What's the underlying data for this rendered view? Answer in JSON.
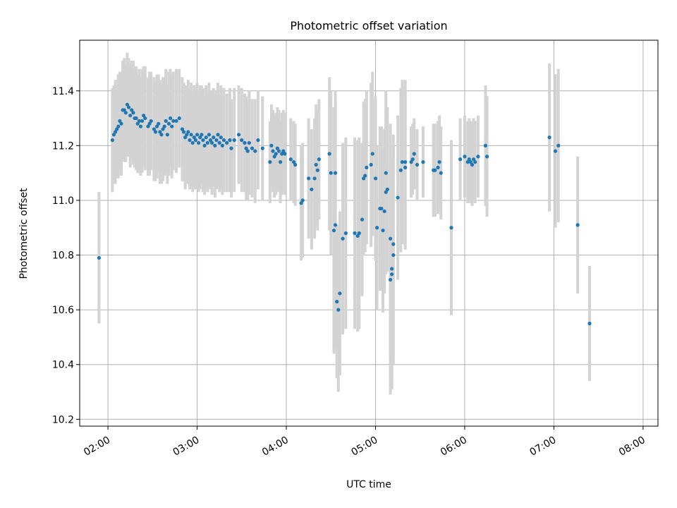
{
  "chart_data": {
    "type": "scatter",
    "title": "Photometric offset variation",
    "xlabel": "UTC time",
    "ylabel": "Photometric offset",
    "xlim": [
      "01:41",
      "08:10"
    ],
    "ylim": [
      10.175,
      11.585
    ],
    "grid": true,
    "colors": {
      "point": "#1f77b4",
      "errorbar": "#d3d3d3",
      "grid": "#b0b0b0"
    },
    "x_ticks": [
      "02:00",
      "03:00",
      "04:00",
      "05:00",
      "06:00",
      "07:00",
      "08:00"
    ],
    "y_ticks": [
      "10.2",
      "10.4",
      "10.6",
      "10.8",
      "11.0",
      "11.2",
      "11.4"
    ],
    "series": [
      {
        "points": [
          [
            "01:54",
            10.79,
            0.24
          ],
          [
            "02:03",
            11.22,
            0.19
          ],
          [
            "02:04",
            11.24,
            0.18
          ],
          [
            "02:05",
            11.25,
            0.19
          ],
          [
            "02:06",
            11.26,
            0.18
          ],
          [
            "02:07",
            11.27,
            0.19
          ],
          [
            "02:08",
            11.29,
            0.18
          ],
          [
            "02:09",
            11.28,
            0.19
          ],
          [
            "02:10",
            11.33,
            0.18
          ],
          [
            "02:11",
            11.33,
            0.19
          ],
          [
            "02:12",
            11.32,
            0.18
          ],
          [
            "02:13",
            11.35,
            0.19
          ],
          [
            "02:14",
            11.34,
            0.18
          ],
          [
            "02:15",
            11.31,
            0.19
          ],
          [
            "02:16",
            11.33,
            0.18
          ],
          [
            "02:17",
            11.32,
            0.19
          ],
          [
            "02:18",
            11.3,
            0.18
          ],
          [
            "02:19",
            11.3,
            0.19
          ],
          [
            "02:20",
            11.28,
            0.18
          ],
          [
            "02:21",
            11.29,
            0.19
          ],
          [
            "02:22",
            11.27,
            0.18
          ],
          [
            "02:23",
            11.29,
            0.19
          ],
          [
            "02:24",
            11.31,
            0.18
          ],
          [
            "02:25",
            11.3,
            0.19
          ],
          [
            "02:27",
            11.27,
            0.18
          ],
          [
            "02:28",
            11.28,
            0.19
          ],
          [
            "02:29",
            11.29,
            0.18
          ],
          [
            "02:31",
            11.26,
            0.19
          ],
          [
            "02:32",
            11.25,
            0.18
          ],
          [
            "02:33",
            11.27,
            0.19
          ],
          [
            "02:34",
            11.28,
            0.18
          ],
          [
            "02:35",
            11.25,
            0.19
          ],
          [
            "02:36",
            11.24,
            0.18
          ],
          [
            "02:37",
            11.26,
            0.19
          ],
          [
            "02:38",
            11.27,
            0.18
          ],
          [
            "02:39",
            11.29,
            0.19
          ],
          [
            "02:40",
            11.24,
            0.18
          ],
          [
            "02:41",
            11.28,
            0.19
          ],
          [
            "02:42",
            11.3,
            0.18
          ],
          [
            "02:43",
            11.27,
            0.19
          ],
          [
            "02:44",
            11.29,
            0.18
          ],
          [
            "02:46",
            11.29,
            0.19
          ],
          [
            "02:48",
            11.3,
            0.18
          ],
          [
            "02:50",
            11.26,
            0.19
          ],
          [
            "02:51",
            11.25,
            0.18
          ],
          [
            "02:52",
            11.23,
            0.19
          ],
          [
            "02:53",
            11.24,
            0.18
          ],
          [
            "02:54",
            11.25,
            0.19
          ],
          [
            "02:55",
            11.22,
            0.18
          ],
          [
            "02:56",
            11.24,
            0.19
          ],
          [
            "02:57",
            11.21,
            0.18
          ],
          [
            "02:58",
            11.23,
            0.19
          ],
          [
            "02:59",
            11.22,
            0.18
          ],
          [
            "03:00",
            11.24,
            0.19
          ],
          [
            "03:01",
            11.21,
            0.18
          ],
          [
            "03:02",
            11.23,
            0.19
          ],
          [
            "03:03",
            11.24,
            0.18
          ],
          [
            "03:04",
            11.22,
            0.19
          ],
          [
            "03:05",
            11.2,
            0.18
          ],
          [
            "03:06",
            11.23,
            0.19
          ],
          [
            "03:07",
            11.21,
            0.18
          ],
          [
            "03:08",
            11.24,
            0.19
          ],
          [
            "03:09",
            11.22,
            0.18
          ],
          [
            "03:10",
            11.21,
            0.19
          ],
          [
            "03:11",
            11.23,
            0.18
          ],
          [
            "03:12",
            11.2,
            0.19
          ],
          [
            "03:13",
            11.22,
            0.18
          ],
          [
            "03:14",
            11.24,
            0.19
          ],
          [
            "03:15",
            11.21,
            0.18
          ],
          [
            "03:16",
            11.23,
            0.19
          ],
          [
            "03:17",
            11.2,
            0.18
          ],
          [
            "03:18",
            11.22,
            0.19
          ],
          [
            "03:20",
            11.21,
            0.18
          ],
          [
            "03:22",
            11.22,
            0.19
          ],
          [
            "03:23",
            11.19,
            0.18
          ],
          [
            "03:25",
            11.22,
            0.19
          ],
          [
            "03:28",
            11.24,
            0.18
          ],
          [
            "03:30",
            11.22,
            0.19
          ],
          [
            "03:32",
            11.21,
            0.18
          ],
          [
            "03:33",
            11.19,
            0.19
          ],
          [
            "03:34",
            11.18,
            0.18
          ],
          [
            "03:35",
            11.21,
            0.19
          ],
          [
            "03:37",
            11.19,
            0.18
          ],
          [
            "03:39",
            11.18,
            0.19
          ],
          [
            "03:41",
            11.22,
            0.18
          ],
          [
            "03:44",
            11.19,
            0.19
          ],
          [
            "03:49",
            11.14,
            0.15
          ],
          [
            "03:50",
            11.2,
            0.15
          ],
          [
            "03:51",
            11.18,
            0.15
          ],
          [
            "03:52",
            11.16,
            0.15
          ],
          [
            "03:53",
            11.17,
            0.15
          ],
          [
            "03:54",
            11.19,
            0.15
          ],
          [
            "03:55",
            11.18,
            0.15
          ],
          [
            "03:56",
            11.14,
            0.15
          ],
          [
            "03:57",
            11.17,
            0.15
          ],
          [
            "03:58",
            11.18,
            0.15
          ],
          [
            "03:59",
            11.17,
            0.15
          ],
          [
            "04:03",
            11.15,
            0.15
          ],
          [
            "04:05",
            11.14,
            0.15
          ],
          [
            "04:06",
            11.13,
            0.15
          ],
          [
            "04:10",
            10.99,
            0.21
          ],
          [
            "04:11",
            11.0,
            0.21
          ],
          [
            "04:15",
            11.08,
            0.22
          ],
          [
            "04:17",
            11.04,
            0.22
          ],
          [
            "04:19",
            11.08,
            0.22
          ],
          [
            "04:20",
            11.13,
            0.22
          ],
          [
            "04:21",
            11.11,
            0.22
          ],
          [
            "04:22",
            11.15,
            0.22
          ],
          [
            "04:29",
            11.17,
            0.28
          ],
          [
            "04:30",
            11.1,
            0.3
          ],
          [
            "04:33",
            11.1,
            0.3
          ],
          [
            "04:32",
            10.89,
            0.45
          ],
          [
            "04:33",
            10.91,
            0.45
          ],
          [
            "04:34",
            10.63,
            0.28
          ],
          [
            "04:35",
            10.6,
            0.3
          ],
          [
            "04:36",
            10.66,
            0.3
          ],
          [
            "04:38",
            10.86,
            0.35
          ],
          [
            "04:40",
            10.88,
            0.35
          ],
          [
            "04:46",
            10.88,
            0.35
          ],
          [
            "04:48",
            10.87,
            0.35
          ],
          [
            "04:49",
            10.88,
            0.35
          ],
          [
            "04:51",
            10.93,
            0.28
          ],
          [
            "04:52",
            11.08,
            0.28
          ],
          [
            "04:53",
            11.09,
            0.28
          ],
          [
            "04:54",
            11.12,
            0.28
          ],
          [
            "04:57",
            11.13,
            0.3
          ],
          [
            "04:58",
            11.17,
            0.3
          ],
          [
            "05:00",
            11.08,
            0.3
          ],
          [
            "05:01",
            10.9,
            0.3
          ],
          [
            "05:03",
            10.97,
            0.3
          ],
          [
            "05:04",
            10.97,
            0.3
          ],
          [
            "05:05",
            10.89,
            0.3
          ],
          [
            "05:06",
            10.96,
            0.3
          ],
          [
            "05:07",
            11.03,
            0.3
          ],
          [
            "05:08",
            11.04,
            0.3
          ],
          [
            "05:07",
            11.1,
            0.3
          ],
          [
            "05:10",
            10.86,
            0.42
          ],
          [
            "05:10",
            10.71,
            0.42
          ],
          [
            "05:11",
            10.73,
            0.42
          ],
          [
            "05:11",
            10.75,
            0.4
          ],
          [
            "05:12",
            10.8,
            0.4
          ],
          [
            "05:12",
            10.84,
            0.4
          ],
          [
            "05:15",
            11.01,
            0.3
          ],
          [
            "05:17",
            11.11,
            0.3
          ],
          [
            "05:18",
            11.14,
            0.3
          ],
          [
            "05:20",
            11.14,
            0.3
          ],
          [
            "05:20",
            11.12,
            0.3
          ],
          [
            "05:24",
            11.14,
            0.13
          ],
          [
            "05:25",
            11.15,
            0.13
          ],
          [
            "05:26",
            11.17,
            0.13
          ],
          [
            "05:28",
            11.13,
            0.13
          ],
          [
            "05:32",
            11.14,
            0.13
          ],
          [
            "05:39",
            11.11,
            0.17
          ],
          [
            "05:40",
            11.11,
            0.17
          ],
          [
            "05:42",
            11.12,
            0.17
          ],
          [
            "05:43",
            11.14,
            0.17
          ],
          [
            "05:44",
            11.1,
            0.17
          ],
          [
            "05:51",
            10.9,
            0.32
          ],
          [
            "05:57",
            11.15,
            0.15
          ],
          [
            "06:00",
            11.16,
            0.15
          ],
          [
            "06:02",
            11.14,
            0.15
          ],
          [
            "06:03",
            11.15,
            0.15
          ],
          [
            "06:04",
            11.14,
            0.15
          ],
          [
            "06:05",
            11.13,
            0.15
          ],
          [
            "06:06",
            11.15,
            0.15
          ],
          [
            "06:07",
            11.14,
            0.15
          ],
          [
            "06:09",
            11.16,
            0.15
          ],
          [
            "06:14",
            11.2,
            0.22
          ],
          [
            "06:15",
            11.16,
            0.22
          ],
          [
            "06:57",
            11.23,
            0.27
          ],
          [
            "07:01",
            11.18,
            0.28
          ],
          [
            "07:03",
            11.2,
            0.28
          ],
          [
            "07:16",
            10.91,
            0.25
          ],
          [
            "07:24",
            10.55,
            0.21
          ]
        ]
      }
    ]
  }
}
